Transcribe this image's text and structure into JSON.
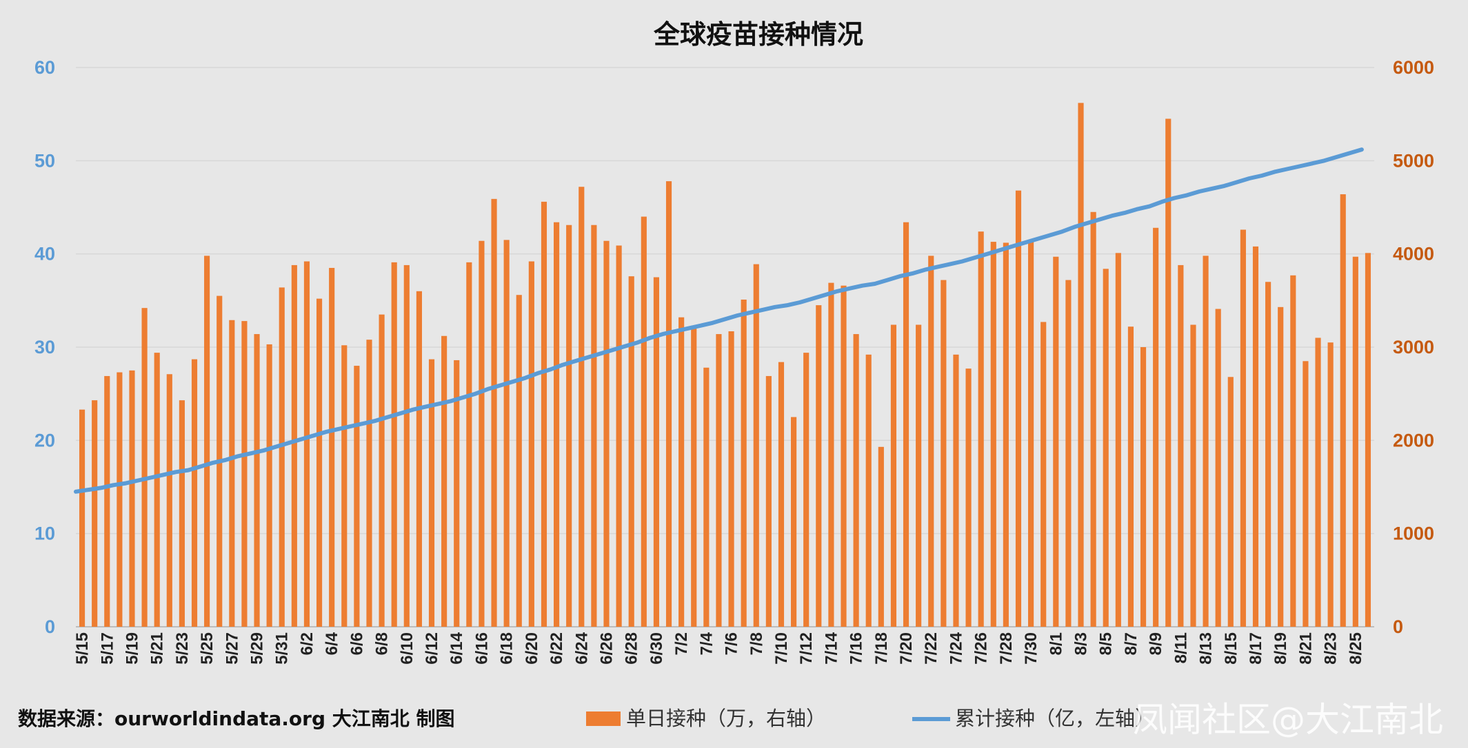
{
  "chart_data": {
    "type": "bar",
    "title": "全球疫苗接种情况",
    "x": [
      "5/15",
      "5/16",
      "5/17",
      "5/18",
      "5/19",
      "5/20",
      "5/21",
      "5/22",
      "5/23",
      "5/24",
      "5/25",
      "5/26",
      "5/27",
      "5/28",
      "5/29",
      "5/30",
      "5/31",
      "6/1",
      "6/2",
      "6/3",
      "6/4",
      "6/5",
      "6/6",
      "6/7",
      "6/8",
      "6/9",
      "6/10",
      "6/11",
      "6/12",
      "6/13",
      "6/14",
      "6/15",
      "6/16",
      "6/17",
      "6/18",
      "6/19",
      "6/20",
      "6/21",
      "6/22",
      "6/23",
      "6/24",
      "6/25",
      "6/26",
      "6/27",
      "6/28",
      "6/29",
      "6/30",
      "7/1",
      "7/2",
      "7/3",
      "7/4",
      "7/5",
      "7/6",
      "7/7",
      "7/8",
      "7/9",
      "7/10",
      "7/11",
      "7/12",
      "7/13",
      "7/14",
      "7/15",
      "7/16",
      "7/17",
      "7/18",
      "7/19",
      "7/20",
      "7/21",
      "7/22",
      "7/23",
      "7/24",
      "7/25",
      "7/26",
      "7/27",
      "7/28",
      "7/29",
      "7/30",
      "7/31",
      "8/1",
      "8/2",
      "8/3",
      "8/4",
      "8/5",
      "8/6",
      "8/7",
      "8/8",
      "8/9",
      "8/10",
      "8/11",
      "8/12",
      "8/13",
      "8/14",
      "8/15",
      "8/16",
      "8/17",
      "8/18",
      "8/19",
      "8/20",
      "8/21",
      "8/22",
      "8/23",
      "8/24",
      "8/25",
      "8/26"
    ],
    "x_tick_labels": [
      "5/15",
      "5/17",
      "5/19",
      "5/21",
      "5/23",
      "5/25",
      "5/27",
      "5/29",
      "5/31",
      "6/2",
      "6/4",
      "6/6",
      "6/8",
      "6/10",
      "6/12",
      "6/14",
      "6/16",
      "6/18",
      "6/20",
      "6/22",
      "6/24",
      "6/26",
      "6/28",
      "6/30",
      "7/2",
      "7/4",
      "7/6",
      "7/8",
      "7/10",
      "7/12",
      "7/14",
      "7/16",
      "7/18",
      "7/20",
      "7/22",
      "7/24",
      "7/26",
      "7/28",
      "7/30",
      "8/1",
      "8/3",
      "8/5",
      "8/7",
      "8/9",
      "8/11",
      "8/13",
      "8/15",
      "8/17",
      "8/19",
      "8/21",
      "8/23",
      "8/25"
    ],
    "series": [
      {
        "name": "单日接种（万，右轴）",
        "type": "bar",
        "axis": "right",
        "color": "#ed7d31",
        "values": [
          2330,
          2430,
          2690,
          2730,
          2750,
          3420,
          2940,
          2710,
          2430,
          2870,
          3980,
          3550,
          3290,
          3280,
          3140,
          3030,
          3640,
          3880,
          3920,
          3520,
          3850,
          3020,
          2800,
          3080,
          3350,
          3910,
          3880,
          3600,
          2870,
          3120,
          2860,
          3910,
          4140,
          4590,
          4150,
          3560,
          3920,
          4560,
          4340,
          4310,
          4720,
          4310,
          4140,
          4090,
          3760,
          4400,
          3750,
          4780,
          3320,
          3230,
          2780,
          3140,
          3170,
          3510,
          3890,
          2690,
          2840,
          2250,
          2940,
          3450,
          3690,
          3660,
          3140,
          2920,
          1930,
          3240,
          4340,
          3240,
          3980,
          3720,
          2920,
          2770,
          4240,
          4130,
          4120,
          4680,
          4130,
          3270,
          3970,
          3720,
          5620,
          4450,
          3840,
          4010,
          3220,
          3000,
          4280,
          5450,
          3880,
          3240,
          3980,
          3410,
          2680,
          4260,
          4080,
          3700,
          3430,
          3770,
          2850,
          3100,
          3050,
          4640,
          3970,
          4010
        ]
      },
      {
        "name": "累计接种（亿，左轴）",
        "type": "line",
        "axis": "left",
        "color": "#5b9bd5",
        "values": [
          14.5,
          14.7,
          14.9,
          15.2,
          15.4,
          15.7,
          16.0,
          16.3,
          16.6,
          16.8,
          17.2,
          17.6,
          17.9,
          18.3,
          18.6,
          18.9,
          19.3,
          19.7,
          20.1,
          20.5,
          20.9,
          21.2,
          21.5,
          21.8,
          22.1,
          22.5,
          22.9,
          23.3,
          23.6,
          23.9,
          24.2,
          24.6,
          25.0,
          25.5,
          25.9,
          26.3,
          26.7,
          27.2,
          27.6,
          28.1,
          28.5,
          28.9,
          29.3,
          29.7,
          30.1,
          30.5,
          31.0,
          31.4,
          31.7,
          32.0,
          32.3,
          32.6,
          33.0,
          33.4,
          33.7,
          34.0,
          34.3,
          34.5,
          34.8,
          35.2,
          35.6,
          36.0,
          36.3,
          36.6,
          36.8,
          37.2,
          37.6,
          37.9,
          38.3,
          38.6,
          38.9,
          39.2,
          39.6,
          40.0,
          40.4,
          40.8,
          41.2,
          41.6,
          42.0,
          42.4,
          42.9,
          43.3,
          43.7,
          44.1,
          44.4,
          44.8,
          45.1,
          45.6,
          46.0,
          46.3,
          46.7,
          47.0,
          47.3,
          47.7,
          48.1,
          48.4,
          48.8,
          49.1,
          49.4,
          49.7,
          50.0,
          50.4,
          50.8,
          51.2
        ]
      }
    ],
    "y_left": {
      "min": 0,
      "max": 60,
      "ticks": [
        0,
        10,
        20,
        30,
        40,
        50,
        60
      ],
      "color": "#5b9bd5"
    },
    "y_right": {
      "min": 0,
      "max": 6000,
      "ticks": [
        0,
        1000,
        2000,
        3000,
        4000,
        5000,
        6000
      ],
      "color": "#c55a11"
    },
    "grid": true,
    "legend_position": "bottom"
  },
  "footer": {
    "source": "数据来源：ourworldindata.org    大江南北 制图"
  },
  "legend": {
    "bar_label": "单日接种（万，右轴）",
    "line_label": "累计接种（亿，左轴）"
  },
  "watermark": "凤闻社区@大江南北"
}
